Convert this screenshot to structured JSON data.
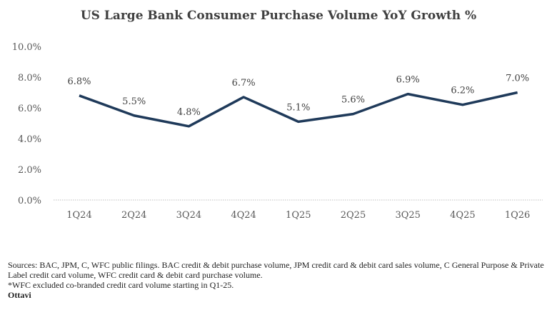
{
  "chart_data": {
    "type": "line",
    "title": "US Large Bank Consumer Purchase Volume YoY Growth %",
    "categories": [
      "1Q24",
      "2Q24",
      "3Q24",
      "4Q24",
      "1Q25",
      "2Q25",
      "3Q25",
      "4Q25",
      "1Q26"
    ],
    "series": [
      {
        "name": "Consumer Purchase Volume YoY Growth",
        "values": [
          6.8,
          5.5,
          4.8,
          6.7,
          5.1,
          5.6,
          6.9,
          6.2,
          7.0
        ],
        "labels": [
          "6.8%",
          "5.5%",
          "4.8%",
          "6.7%",
          "5.1%",
          "5.6%",
          "6.9%",
          "6.2%",
          "7.0%"
        ]
      }
    ],
    "ylim": [
      0,
      10
    ],
    "yticks": [
      0,
      2,
      4,
      6,
      8,
      10
    ],
    "ytick_labels": [
      "0.0%",
      "2.0%",
      "4.0%",
      "6.0%",
      "8.0%",
      "10.0%"
    ],
    "xlabel": "",
    "ylabel": "",
    "grid": false,
    "legend": "none",
    "line_color": "#1f3a5a"
  },
  "notes": {
    "line1": "Sources: BAC, JPM, C, WFC public filings. BAC credit & debit purchase volume, JPM credit card & debit card sales volume, C General Purpose & Private Label credit card volume, WFC credit card & debit card purchase volume.",
    "line2": "*WFC excluded co-branded credit card volume starting in Q1-25.",
    "source": "Ottavi"
  }
}
